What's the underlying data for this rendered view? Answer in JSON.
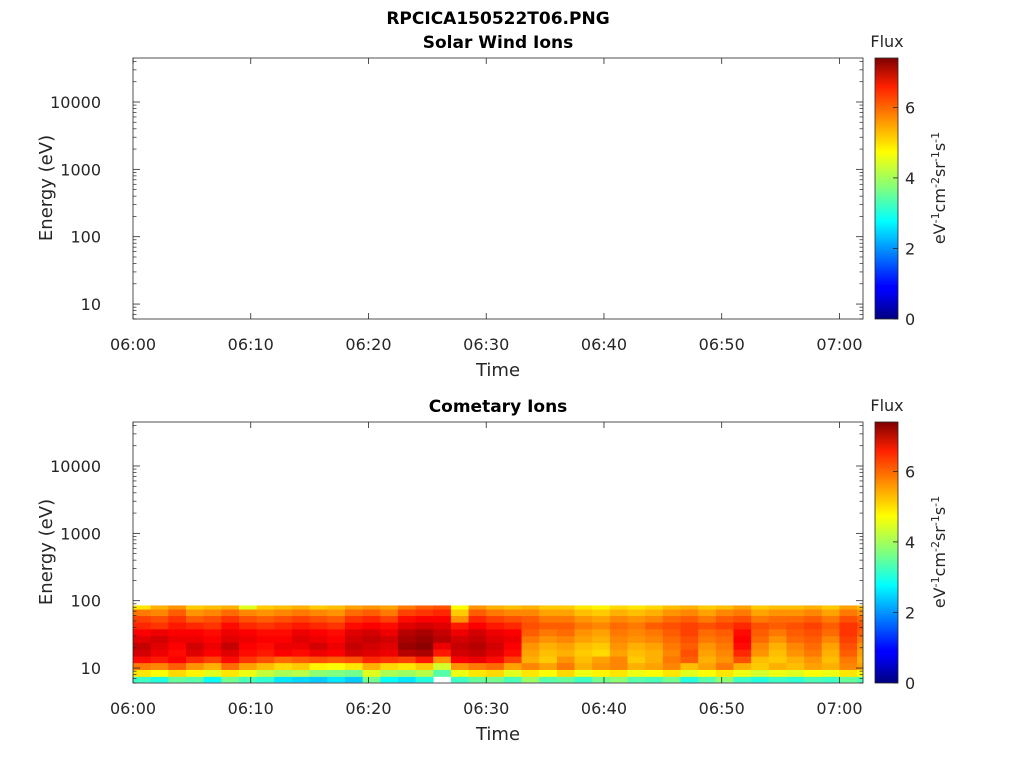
{
  "figure": {
    "title": "RPCICA150522T06.PNG"
  },
  "colorbar": {
    "title": "Flux",
    "ticks": [
      "0",
      "2",
      "4",
      "6"
    ],
    "range": [
      0,
      7.4
    ]
  },
  "chart_data": [
    {
      "type": "heatmap",
      "title": "Solar Wind Ions",
      "xlabel": "Time",
      "ylabel": "Energy (eV)",
      "yscale": "log",
      "xlim": [
        "06:00",
        "07:02"
      ],
      "ylim": [
        6,
        45000
      ],
      "x_tick_labels": [
        "06:00",
        "06:10",
        "06:20",
        "06:30",
        "06:40",
        "06:50",
        "07:00"
      ],
      "y_tick_labels": [
        "10",
        "100",
        "1000",
        "10000"
      ],
      "colorbar_label": "eV-1cm-2sr-1s-1",
      "flux_rows": []
    },
    {
      "type": "heatmap",
      "title": "Cometary Ions",
      "xlabel": "Time",
      "ylabel": "Energy (eV)",
      "yscale": "log",
      "xlim": [
        "06:00",
        "07:02"
      ],
      "ylim": [
        6,
        45000
      ],
      "x_tick_labels": [
        "06:00",
        "06:10",
        "06:20",
        "06:30",
        "06:40",
        "06:50",
        "07:00"
      ],
      "y_tick_labels": [
        "10",
        "100",
        "1000",
        "10000"
      ],
      "colorbar_label": "eV-1cm-2sr-1s-1",
      "energy_bins": [
        6.2,
        7.5,
        9.5,
        12,
        15,
        19,
        24,
        30,
        38,
        48,
        60,
        75,
        85
      ],
      "time_bins_minutes": [
        0,
        1.5,
        3,
        4.5,
        6,
        7.5,
        9,
        10.5,
        12,
        13.5,
        15,
        16.5,
        18,
        19.5,
        21,
        22.5,
        24,
        25.5,
        27,
        28.5,
        30,
        31.5,
        33,
        34.5,
        36,
        37.5,
        39,
        40.5,
        42,
        43.5,
        45,
        46.5,
        48,
        49.5,
        51,
        52.5,
        54,
        55.5,
        57,
        58.5,
        60,
        61.5
      ],
      "flux_rows": [
        [
          3.2,
          3.0,
          3.5,
          3.4,
          2.8,
          3.6,
          3.3,
          3.1,
          2.6,
          2.5,
          2.4,
          2.6,
          2.4,
          3.6,
          2.8,
          2.6,
          3.0,
          null,
          3.2,
          3.5,
          3.6,
          3.3,
          3.9,
          3.4,
          3.5,
          3.2,
          3.6,
          3.8,
          3.4,
          3.3,
          3.6,
          3.0,
          3.4,
          3.8,
          3.2,
          3.0,
          3.2,
          3.1,
          3.3,
          3.2,
          3.5,
          3.3
        ],
        [
          4.8,
          4.6,
          4.9,
          4.7,
          4.4,
          4.8,
          4.5,
          4.2,
          4.0,
          4.1,
          3.8,
          3.7,
          3.6,
          4.4,
          4.0,
          3.9,
          4.1,
          3.4,
          4.5,
          4.8,
          4.9,
          4.4,
          4.8,
          4.6,
          4.9,
          4.5,
          4.7,
          4.8,
          4.5,
          4.6,
          4.8,
          4.4,
          4.6,
          4.8,
          4.5,
          4.3,
          4.5,
          4.4,
          4.6,
          4.5,
          4.8,
          4.6
        ],
        [
          5.6,
          5.5,
          5.8,
          5.4,
          5.2,
          5.7,
          5.3,
          5.1,
          4.9,
          5.0,
          4.7,
          4.6,
          4.8,
          5.2,
          4.9,
          4.8,
          5.0,
          4.3,
          5.4,
          5.6,
          5.7,
          5.3,
          5.5,
          5.3,
          5.6,
          5.2,
          5.4,
          5.5,
          5.2,
          5.3,
          5.5,
          5.1,
          5.3,
          5.6,
          5.2,
          5.0,
          5.2,
          5.1,
          5.3,
          5.2,
          5.5,
          5.3
        ],
        [
          6.4,
          6.3,
          6.5,
          6.2,
          6.0,
          6.4,
          6.1,
          5.9,
          5.7,
          5.8,
          5.9,
          5.8,
          5.9,
          6.2,
          6.1,
          6.0,
          6.3,
          5.4,
          6.5,
          6.6,
          6.4,
          6.0,
          5.2,
          5.0,
          5.4,
          5.1,
          5.3,
          5.5,
          5.0,
          5.2,
          5.6,
          5.8,
          5.2,
          5.4,
          5.9,
          5.1,
          5.0,
          5.2,
          5.4,
          5.1,
          5.6,
          5.2
        ],
        [
          6.8,
          6.6,
          6.4,
          6.7,
          6.5,
          6.7,
          6.4,
          6.3,
          6.5,
          6.4,
          6.6,
          6.5,
          6.8,
          6.7,
          6.6,
          7.0,
          7.1,
          6.3,
          6.8,
          6.9,
          6.7,
          6.4,
          5.3,
          5.1,
          5.2,
          5.0,
          4.9,
          5.3,
          5.1,
          5.2,
          5.5,
          5.9,
          5.3,
          5.5,
          6.2,
          5.4,
          5.1,
          5.4,
          5.6,
          5.2,
          5.8,
          5.3
        ],
        [
          6.9,
          6.7,
          6.5,
          6.8,
          6.6,
          6.9,
          6.5,
          6.4,
          6.6,
          6.6,
          6.8,
          6.6,
          6.9,
          6.8,
          6.7,
          7.2,
          7.3,
          6.6,
          6.9,
          7.0,
          6.8,
          6.5,
          5.4,
          5.2,
          5.3,
          5.1,
          5.0,
          5.4,
          5.2,
          5.3,
          5.6,
          5.8,
          5.4,
          5.6,
          6.4,
          5.5,
          5.2,
          5.5,
          5.7,
          5.3,
          5.9,
          5.4
        ],
        [
          6.7,
          6.8,
          6.6,
          6.6,
          6.5,
          6.7,
          6.6,
          6.5,
          6.5,
          6.7,
          6.6,
          6.5,
          6.8,
          6.9,
          6.8,
          7.1,
          7.2,
          7.0,
          6.8,
          6.9,
          6.7,
          6.6,
          5.6,
          5.4,
          5.5,
          5.3,
          5.2,
          5.5,
          5.4,
          5.5,
          5.7,
          5.9,
          5.6,
          5.7,
          6.5,
          5.7,
          5.4,
          5.7,
          5.8,
          5.5,
          6.0,
          5.6
        ],
        [
          6.5,
          6.6,
          6.5,
          6.5,
          6.4,
          6.6,
          6.5,
          6.4,
          6.4,
          6.6,
          6.5,
          6.4,
          6.7,
          6.8,
          6.6,
          7.0,
          7.1,
          6.9,
          6.6,
          6.8,
          6.6,
          6.5,
          5.8,
          5.6,
          5.7,
          5.4,
          5.3,
          5.6,
          5.5,
          5.6,
          5.8,
          6.0,
          5.7,
          5.8,
          6.4,
          5.8,
          5.6,
          5.8,
          5.9,
          5.7,
          6.1,
          5.8
        ],
        [
          6.2,
          6.1,
          6.3,
          6.2,
          6.1,
          6.4,
          6.2,
          6.1,
          6.2,
          6.3,
          6.2,
          6.1,
          6.4,
          6.5,
          6.4,
          6.7,
          6.8,
          6.7,
          6.3,
          6.5,
          6.3,
          6.2,
          5.9,
          5.8,
          5.8,
          5.6,
          5.5,
          5.7,
          5.6,
          5.8,
          5.9,
          6.0,
          5.9,
          6.0,
          6.2,
          5.9,
          5.8,
          5.9,
          6.0,
          5.8,
          6.1,
          5.9
        ],
        [
          6.0,
          5.9,
          6.1,
          5.8,
          5.9,
          6.1,
          5.9,
          5.8,
          5.9,
          6.0,
          5.9,
          5.8,
          6.1,
          6.2,
          6.0,
          6.4,
          6.5,
          6.5,
          5.4,
          6.2,
          6.0,
          5.9,
          5.8,
          5.6,
          5.6,
          5.4,
          5.3,
          5.5,
          5.4,
          5.5,
          5.7,
          5.8,
          5.6,
          5.8,
          5.9,
          5.6,
          5.7,
          5.7,
          5.8,
          5.6,
          5.9,
          5.7
        ],
        [
          5.6,
          5.5,
          5.8,
          5.4,
          5.5,
          5.7,
          5.5,
          5.4,
          5.5,
          5.6,
          5.5,
          5.4,
          5.7,
          5.8,
          5.6,
          6.0,
          6.1,
          6.2,
          5.0,
          5.8,
          5.6,
          5.5,
          5.5,
          5.3,
          5.3,
          5.1,
          5.0,
          5.2,
          5.1,
          5.2,
          5.4,
          5.5,
          5.3,
          5.5,
          5.6,
          5.3,
          5.4,
          5.4,
          5.5,
          5.3,
          5.6,
          5.4
        ],
        [
          4.8,
          5.2,
          5.4,
          5.0,
          5.1,
          5.2,
          4.4,
          5.0,
          5.1,
          5.2,
          5.0,
          5.1,
          5.3,
          5.4,
          5.3,
          5.6,
          5.8,
          5.9,
          4.6,
          5.4,
          5.2,
          5.1,
          5.2,
          5.0,
          5.0,
          4.8,
          4.7,
          4.9,
          4.8,
          4.9,
          5.1,
          5.2,
          5.0,
          5.1,
          5.3,
          5.0,
          5.1,
          5.1,
          5.2,
          5.0,
          5.3,
          5.1
        ]
      ]
    }
  ]
}
